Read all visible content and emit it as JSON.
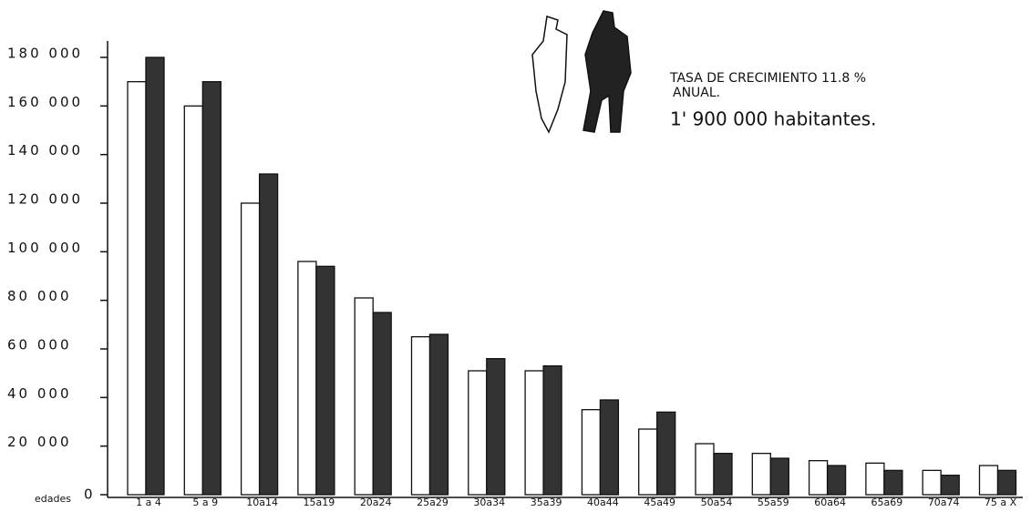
{
  "chart_data": {
    "type": "bar",
    "annotations": [
      "TASA DE CRECIMIENTO  11.8 %",
      "ANUAL.",
      "1' 900 000   habitantes."
    ],
    "x_label": "edades",
    "categories": [
      "1 a 4",
      "5 a 9",
      "10a14",
      "15a19",
      "20a24",
      "25a29",
      "30a34",
      "35a39",
      "40a44",
      "45a49",
      "50a54",
      "55a59",
      "60a64",
      "65a69",
      "70a74",
      "75 a  X"
    ],
    "series": [
      {
        "color": "#ffffff",
        "values": [
          170000,
          160000,
          120000,
          96000,
          81000,
          65000,
          51000,
          51000,
          35000,
          27000,
          21000,
          17000,
          14000,
          13000,
          10000,
          12000
        ]
      },
      {
        "color": "#333333",
        "values": [
          180000,
          170000,
          132000,
          94000,
          75000,
          66000,
          56000,
          53000,
          39000,
          34000,
          17000,
          15000,
          12000,
          10000,
          8000,
          10000
        ]
      }
    ],
    "ylim": [
      0,
      180000
    ],
    "yticks": [
      0,
      {
        "value": 20000,
        "label": "20 000"
      },
      {
        "value": 40000,
        "label": "40 000"
      },
      {
        "value": 60000,
        "label": "60 000"
      },
      {
        "value": 80000,
        "label": "80 000"
      },
      {
        "value": 100000,
        "label": "100 000"
      },
      {
        "value": 120000,
        "label": "120 000"
      },
      {
        "value": 140000,
        "label": "140 000"
      },
      {
        "value": 160000,
        "label": "160 000"
      },
      {
        "value": 180000,
        "label": "180 000"
      }
    ]
  }
}
